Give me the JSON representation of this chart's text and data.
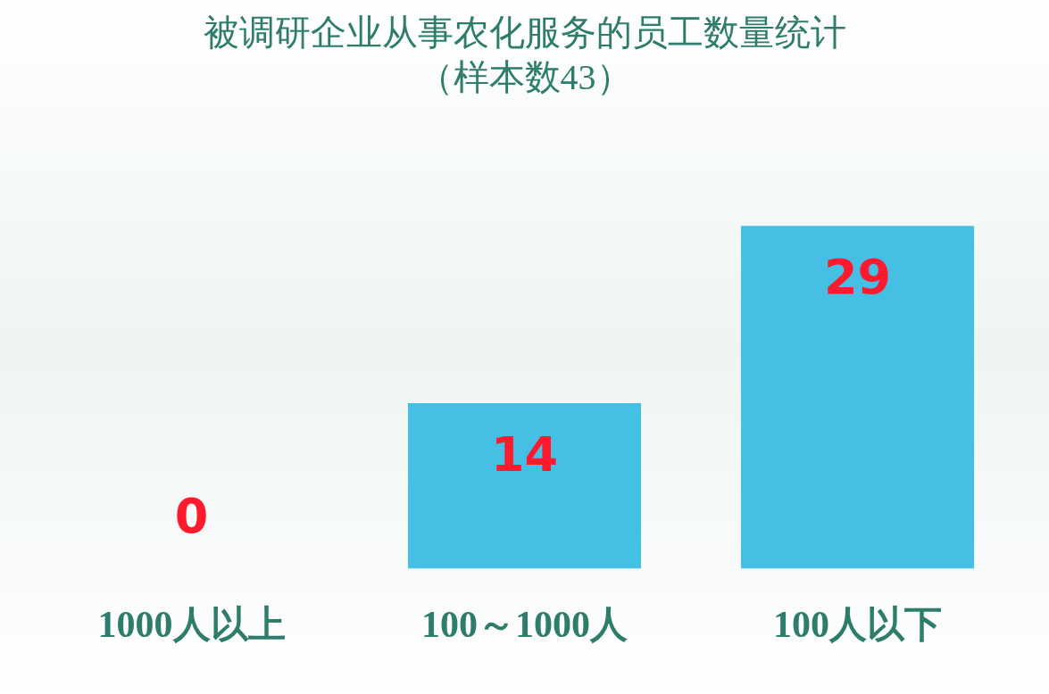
{
  "chart_data": {
    "type": "bar",
    "title": "被调研企业从事农化服务的员工数量统计",
    "subtitle": "（样本数43）",
    "categories": [
      "1000人以上",
      "100～1000人",
      "100人以下"
    ],
    "values": [
      0,
      14,
      29
    ],
    "color": "#45bfe4",
    "data_labels": true,
    "tick_labels": "x",
    "grid": false,
    "legend": false
  }
}
